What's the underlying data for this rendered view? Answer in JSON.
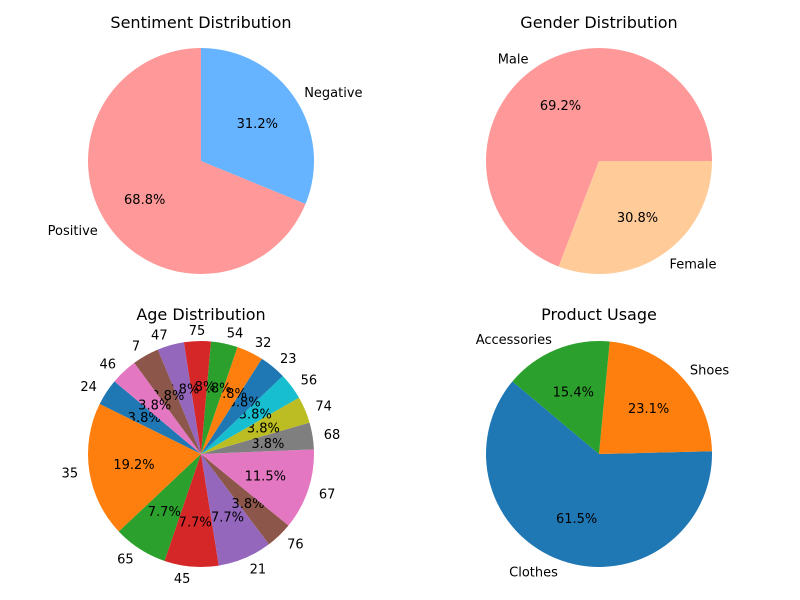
{
  "chart_data": [
    {
      "type": "pie",
      "title": "Sentiment Distribution",
      "categories": [
        "Positive",
        "Negative"
      ],
      "values": [
        68.8,
        31.2
      ],
      "value_labels": [
        "68.8%",
        "31.2%"
      ],
      "colors": [
        "#ff9999",
        "#66b3ff"
      ]
    },
    {
      "type": "pie",
      "title": "Gender Distribution",
      "categories": [
        "Male",
        "Female"
      ],
      "values": [
        69.2,
        30.8
      ],
      "value_labels": [
        "69.2%",
        "30.8%"
      ],
      "colors": [
        "#ff9999",
        "#ffcc99"
      ]
    },
    {
      "type": "pie",
      "title": "Age Distribution",
      "categories": [
        "24",
        "35",
        "65",
        "45",
        "21",
        "76",
        "67",
        "68",
        "74",
        "56",
        "23",
        "32",
        "54",
        "75",
        "47",
        "7",
        "46"
      ],
      "values": [
        3.8,
        19.2,
        7.7,
        7.7,
        7.7,
        3.8,
        11.5,
        3.8,
        3.8,
        3.8,
        3.8,
        3.8,
        3.8,
        3.8,
        3.8,
        3.8,
        3.8
      ],
      "value_labels": [
        "3.8%",
        "19.2%",
        "7.7%",
        "7.7%",
        "7.7%",
        "3.8%",
        "11.5%",
        "3.8%",
        "3.8%",
        "3.8%",
        "3.8%",
        "3.8%",
        "3.8%",
        "3.8%",
        "3.8%",
        "3.8%",
        "3.8%"
      ],
      "colors": [
        "#1f77b4",
        "#ff7f0e",
        "#2ca02c",
        "#d62728",
        "#9467bd",
        "#8c564b",
        "#e377c2",
        "#7f7f7f",
        "#bcbd22",
        "#17becf",
        "#1f77b4",
        "#ff7f0e",
        "#2ca02c",
        "#d62728",
        "#9467bd",
        "#8c564b",
        "#e377c2"
      ]
    },
    {
      "type": "pie",
      "title": "Product Usage",
      "categories": [
        "Clothes",
        "Shoes",
        "Accessories"
      ],
      "values": [
        61.5,
        23.1,
        15.4
      ],
      "value_labels": [
        "61.5%",
        "23.1%",
        "15.4%"
      ],
      "colors": [
        "#1f77b4",
        "#ff7f0e",
        "#2ca02c"
      ]
    }
  ]
}
